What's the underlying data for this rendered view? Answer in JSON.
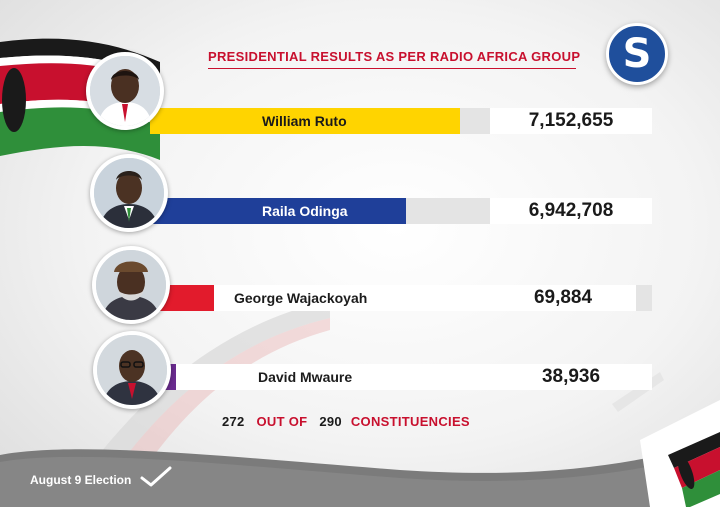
{
  "header": {
    "title": "PRESIDENTIAL RESULTS AS PER RADIO AFRICA GROUP",
    "logo_letter": "S"
  },
  "chart_data": {
    "type": "bar",
    "title": "PRESIDENTIAL RESULTS AS PER RADIO AFRICA GROUP",
    "categories": [
      "William Ruto",
      "Raila Odinga",
      "George Wajackoyah",
      "David Mwaure"
    ],
    "values": [
      7152655,
      6942708,
      69884,
      38936
    ],
    "value_labels": [
      "7,152,655",
      "6,942,708",
      "69,884",
      "38,936"
    ],
    "colors": [
      "#ffd400",
      "#1f3f99",
      "#e21b2c",
      "#6a2b8f"
    ]
  },
  "footer": {
    "counted": "272",
    "out_of": "OUT OF",
    "total": "290",
    "unit": "CONSTITUENCIES",
    "date_label": "August 9 Election"
  },
  "icons": {
    "logo": "star-logo-icon",
    "check": "checkmark-icon",
    "flag": "kenya-flag-icon"
  }
}
